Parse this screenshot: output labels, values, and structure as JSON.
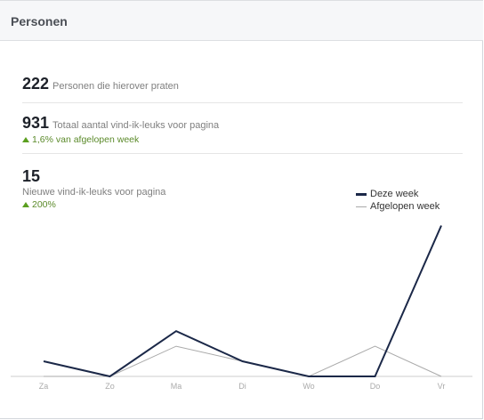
{
  "header": {
    "title": "Personen"
  },
  "stats": {
    "talking": {
      "value": "222",
      "label": "Personen die hierover praten"
    },
    "total_likes": {
      "value": "931",
      "label": "Totaal aantal vind-ik-leuks voor pagina",
      "change": "1,6% van afgelopen week"
    },
    "new_likes": {
      "value": "15",
      "label": "Nieuwe vind-ik-leuks voor pagina",
      "change": "200%"
    }
  },
  "legend": {
    "current": "Deze week",
    "previous": "Afgelopen week"
  },
  "colors": {
    "current": "#1b2848",
    "previous": "#aaaaaa",
    "positive": "#5b9f1f"
  },
  "chart_data": {
    "type": "line",
    "categories": [
      "Za",
      "Zo",
      "Ma",
      "Di",
      "Wo",
      "Do",
      "Vr"
    ],
    "series": [
      {
        "name": "Deze week",
        "values": [
          1,
          0,
          3,
          1,
          0,
          0,
          10
        ]
      },
      {
        "name": "Afgelopen week",
        "values": [
          0,
          0,
          2,
          1,
          0,
          2,
          0
        ]
      }
    ],
    "ylim": [
      0,
      10.5
    ],
    "grid": false,
    "legend_position": "top-right"
  }
}
